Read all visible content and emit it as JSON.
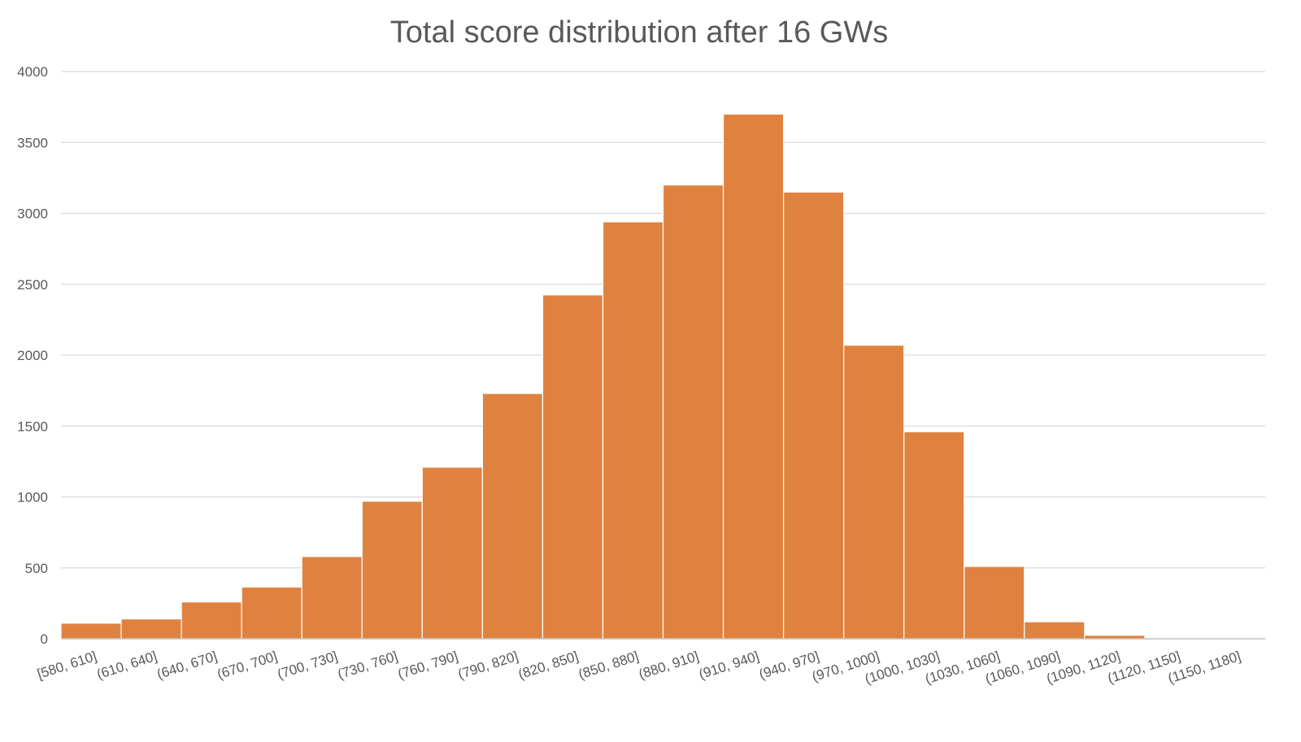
{
  "chart_data": {
    "type": "bar",
    "title": "Total score distribution after 16 GWs",
    "xlabel": "",
    "ylabel": "",
    "ylim": [
      0,
      4000
    ],
    "yticks": [
      0,
      500,
      1000,
      1500,
      2000,
      2500,
      3000,
      3500,
      4000
    ],
    "grid": true,
    "legend": "none",
    "bar_color": "#E0823F",
    "categories": [
      "[580, 610]",
      "(610, 640]",
      "(640, 670]",
      "(670, 700]",
      "(700, 730]",
      "(730, 760]",
      "(760, 790]",
      "(790, 820]",
      "(820, 850]",
      "(850, 880]",
      "(880, 910]",
      "(910, 940]",
      "(940, 970]",
      "(970, 1000]",
      "(1000, 1030]",
      "(1030, 1060]",
      "(1060, 1090]",
      "(1090, 1120]",
      "(1120, 1150]",
      "(1150, 1180]"
    ],
    "values": [
      110,
      140,
      260,
      365,
      580,
      970,
      1210,
      1730,
      2425,
      2940,
      3200,
      3700,
      3150,
      2070,
      1460,
      510,
      120,
      25,
      0,
      0
    ]
  }
}
